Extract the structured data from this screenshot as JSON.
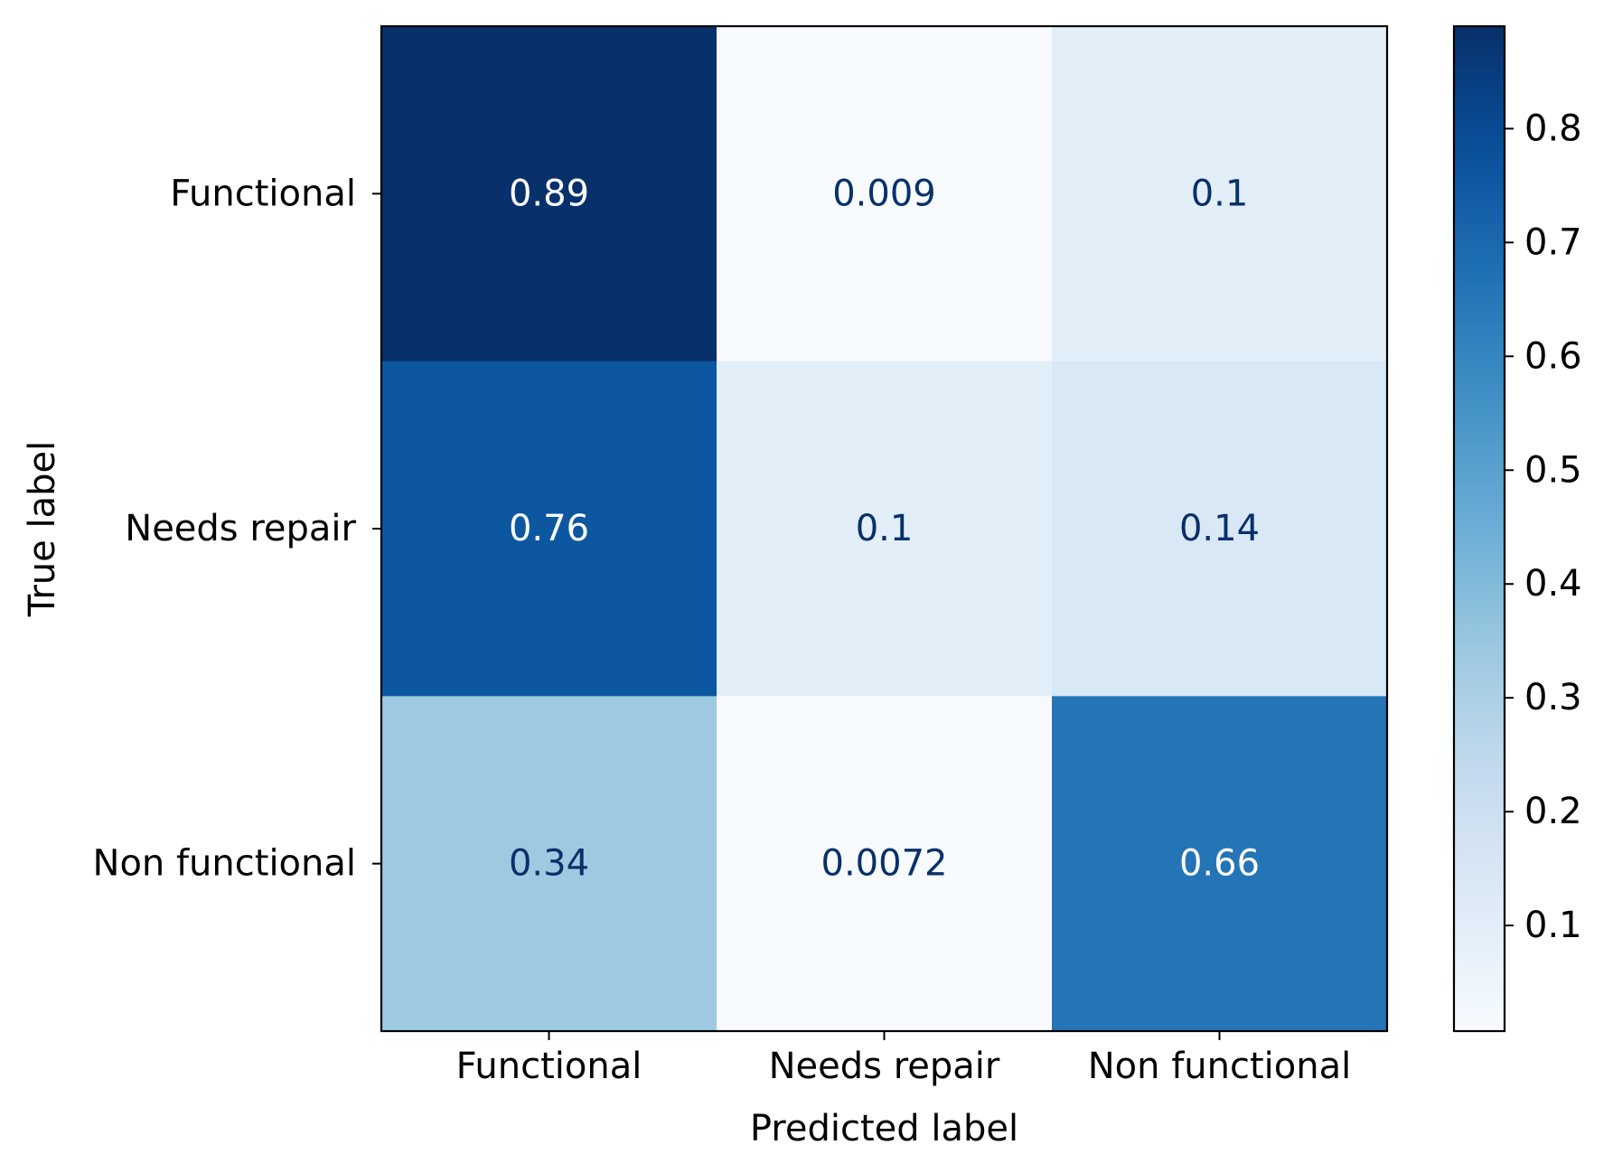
{
  "chart_data": {
    "type": "heatmap",
    "title": "",
    "xlabel": "Predicted label",
    "ylabel": "True label",
    "x_categories": [
      "Functional",
      "Needs repair",
      "Non functional"
    ],
    "y_categories": [
      "Functional",
      "Needs repair",
      "Non functional"
    ],
    "values": [
      [
        0.89,
        0.009,
        0.1
      ],
      [
        0.76,
        0.1,
        0.14
      ],
      [
        0.34,
        0.0072,
        0.66
      ]
    ],
    "value_labels": [
      [
        "0.89",
        "0.009",
        "0.1"
      ],
      [
        "0.76",
        "0.1",
        "0.14"
      ],
      [
        "0.34",
        "0.0072",
        "0.66"
      ]
    ],
    "colormap": "Blues",
    "color_range": [
      0.0072,
      0.89
    ],
    "colorbar_ticks": [
      0.1,
      0.2,
      0.3,
      0.4,
      0.5,
      0.6,
      0.7,
      0.8
    ],
    "colorbar_tick_labels": [
      "0.1",
      "0.2",
      "0.3",
      "0.4",
      "0.5",
      "0.6",
      "0.7",
      "0.8"
    ],
    "text_colors": {
      "dark_cell": "#ffffff",
      "light_cell": "#08306b"
    },
    "grid": false
  }
}
